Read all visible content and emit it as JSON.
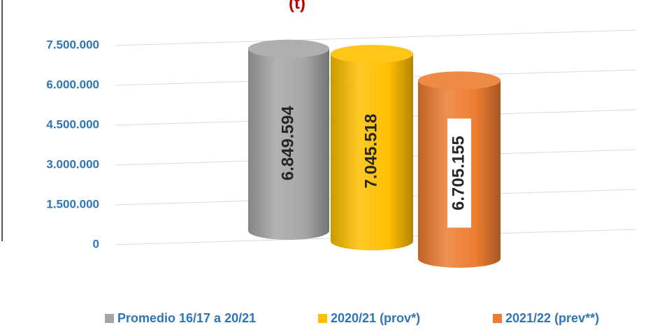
{
  "chart_data": {
    "type": "bar",
    "title": "(t)",
    "ylim": [
      0,
      9000000
    ],
    "yticks": [
      0,
      {
        "value": 1500000,
        "label": "1.500.000"
      },
      {
        "value": 3000000,
        "label": "3.000.000"
      },
      {
        "value": 4500000,
        "label": "4.500.000"
      },
      {
        "value": 6000000,
        "label": "6.000.000"
      },
      {
        "value": 7500000,
        "label": "7.500.000"
      }
    ],
    "grid": true,
    "legend": "bottom",
    "series": [
      {
        "name": "Promedio 16/17 a 20/21",
        "color": "#a6a6a6",
        "values": [
          6849594
        ],
        "value_labels": [
          "6.849.594"
        ]
      },
      {
        "name": "2020/21 (prov*)",
        "color": "#ffc000",
        "values": [
          7045518
        ],
        "value_labels": [
          "7.045.518"
        ]
      },
      {
        "name": "2021/22 (prev**)",
        "color": "#ed7d31",
        "values": [
          6705155
        ],
        "value_labels": [
          "6.705.155"
        ]
      }
    ]
  }
}
